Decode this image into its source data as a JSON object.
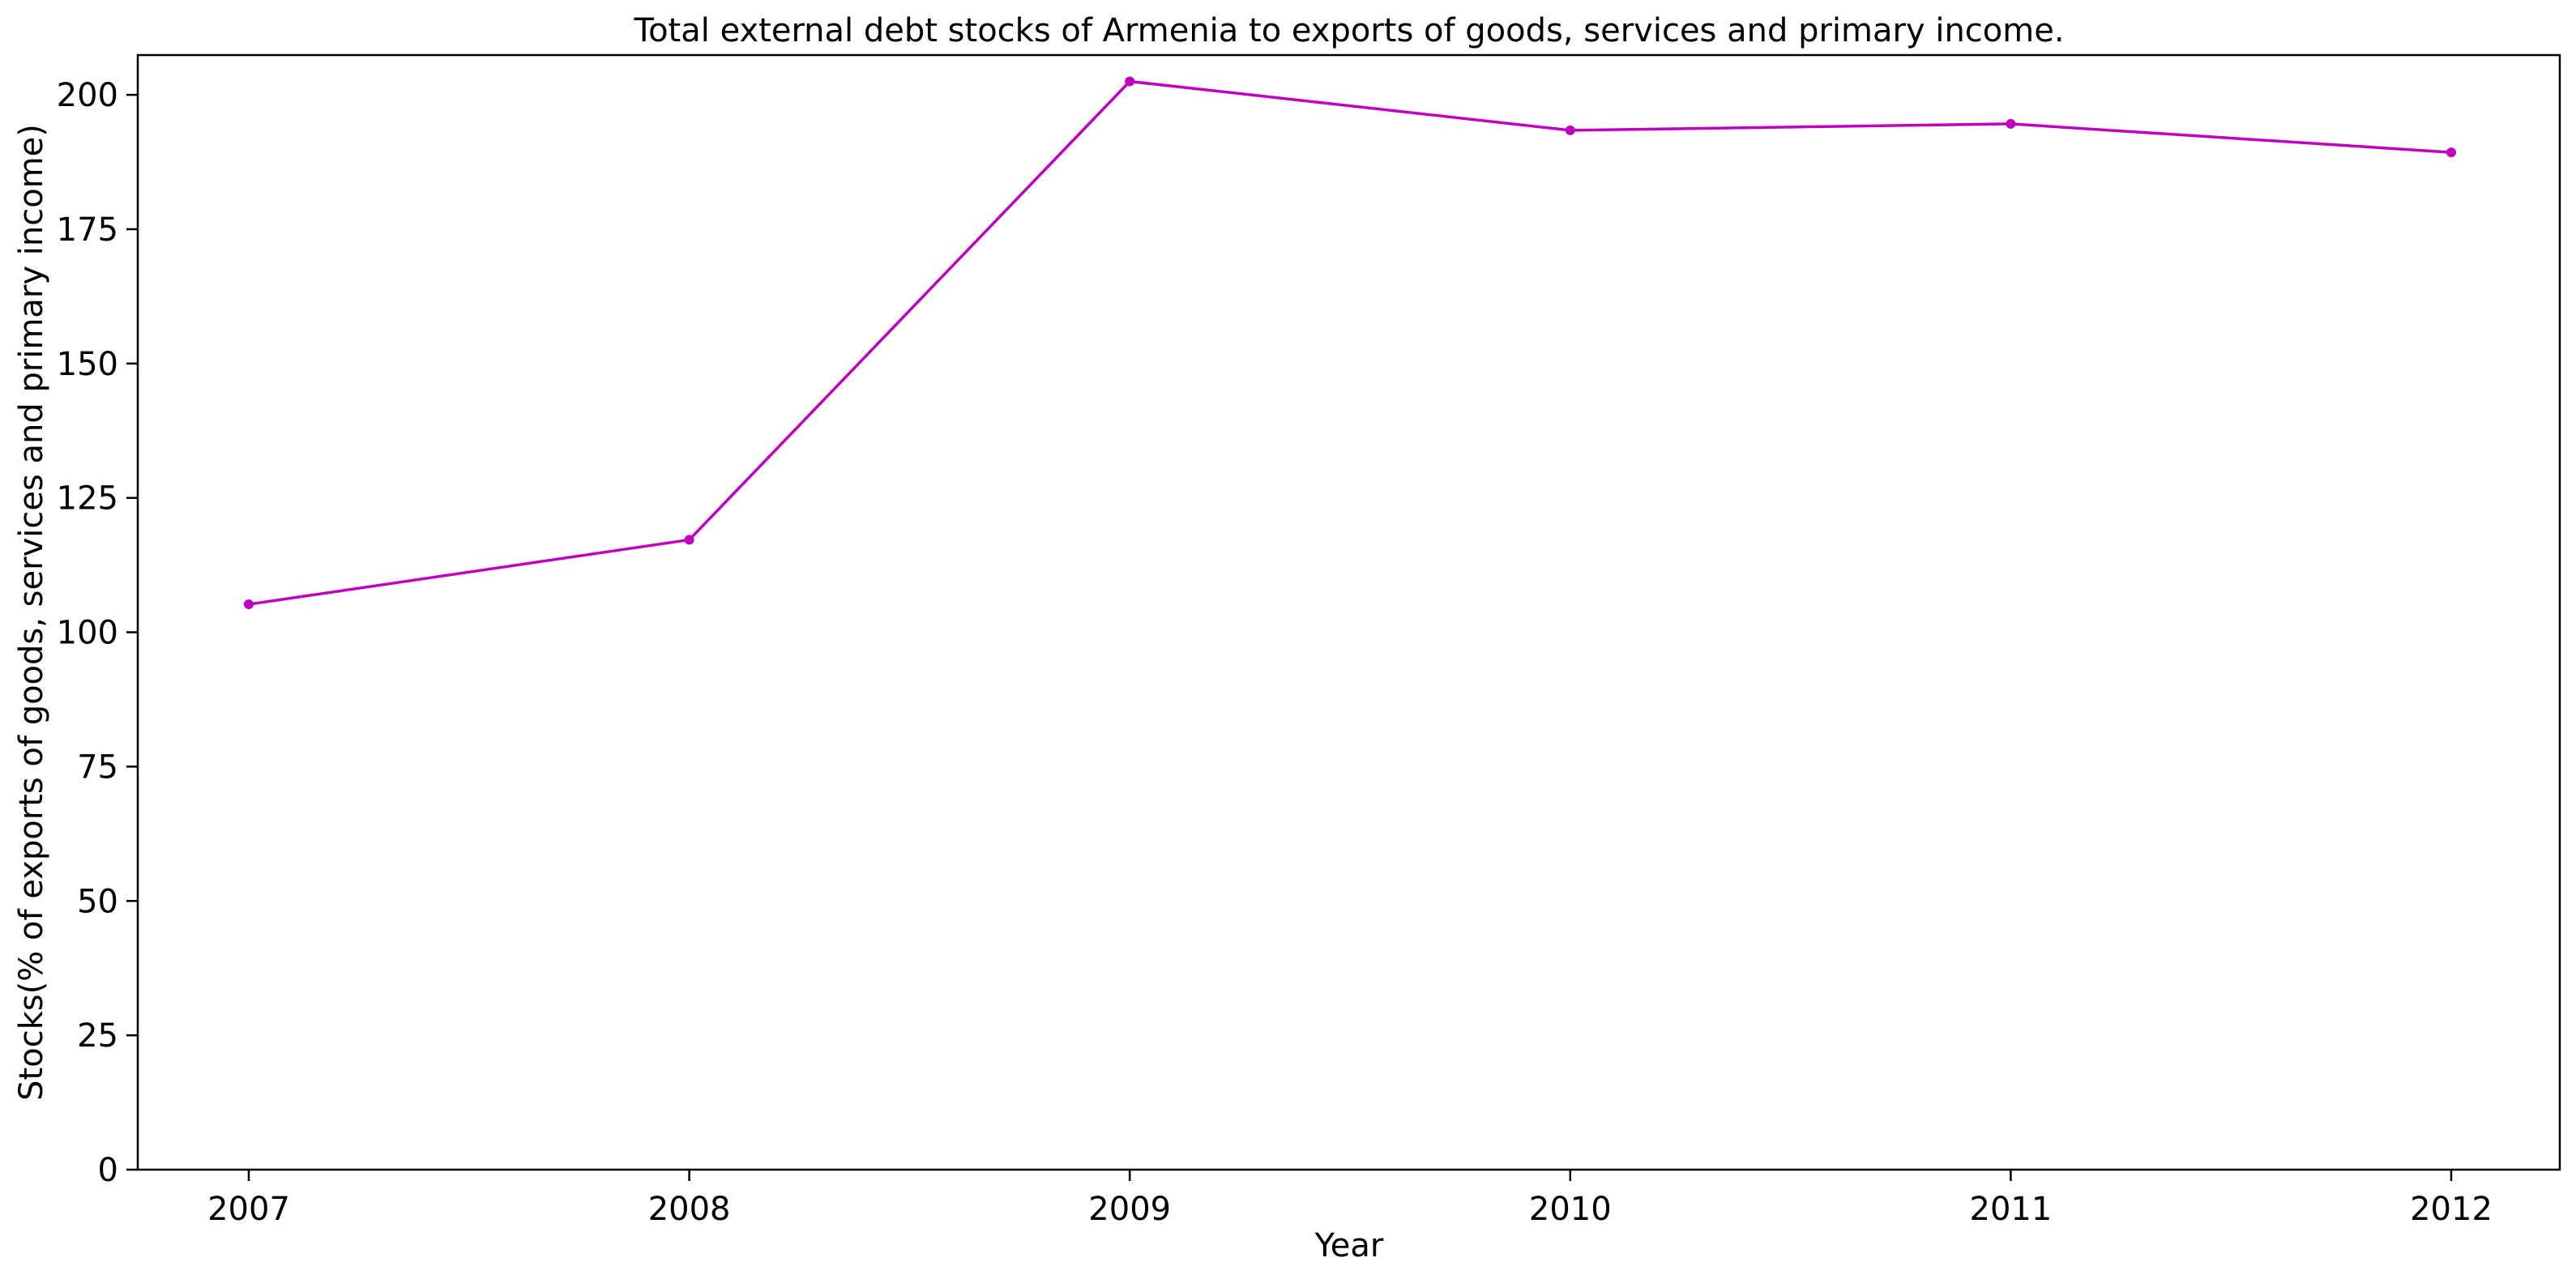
{
  "chart_data": {
    "type": "line",
    "title": "Total external debt stocks of Armenia to exports of goods, services and primary income.",
    "xlabel": "Year",
    "ylabel": "Stocks(% of exports of goods, services and primary income)",
    "x": [
      "2007",
      "2008",
      "2009",
      "2010",
      "2011",
      "2012"
    ],
    "series": [
      {
        "values": [
          105.2,
          117.2,
          202.5,
          193.4,
          194.6,
          189.3
        ],
        "color": "#bf00bf",
        "marker": "circle"
      }
    ],
    "ylim": [
      0,
      207.4
    ],
    "yticks": [
      0,
      25,
      50,
      75,
      100,
      125,
      150,
      175,
      200
    ],
    "grid": false,
    "legend": "none"
  }
}
